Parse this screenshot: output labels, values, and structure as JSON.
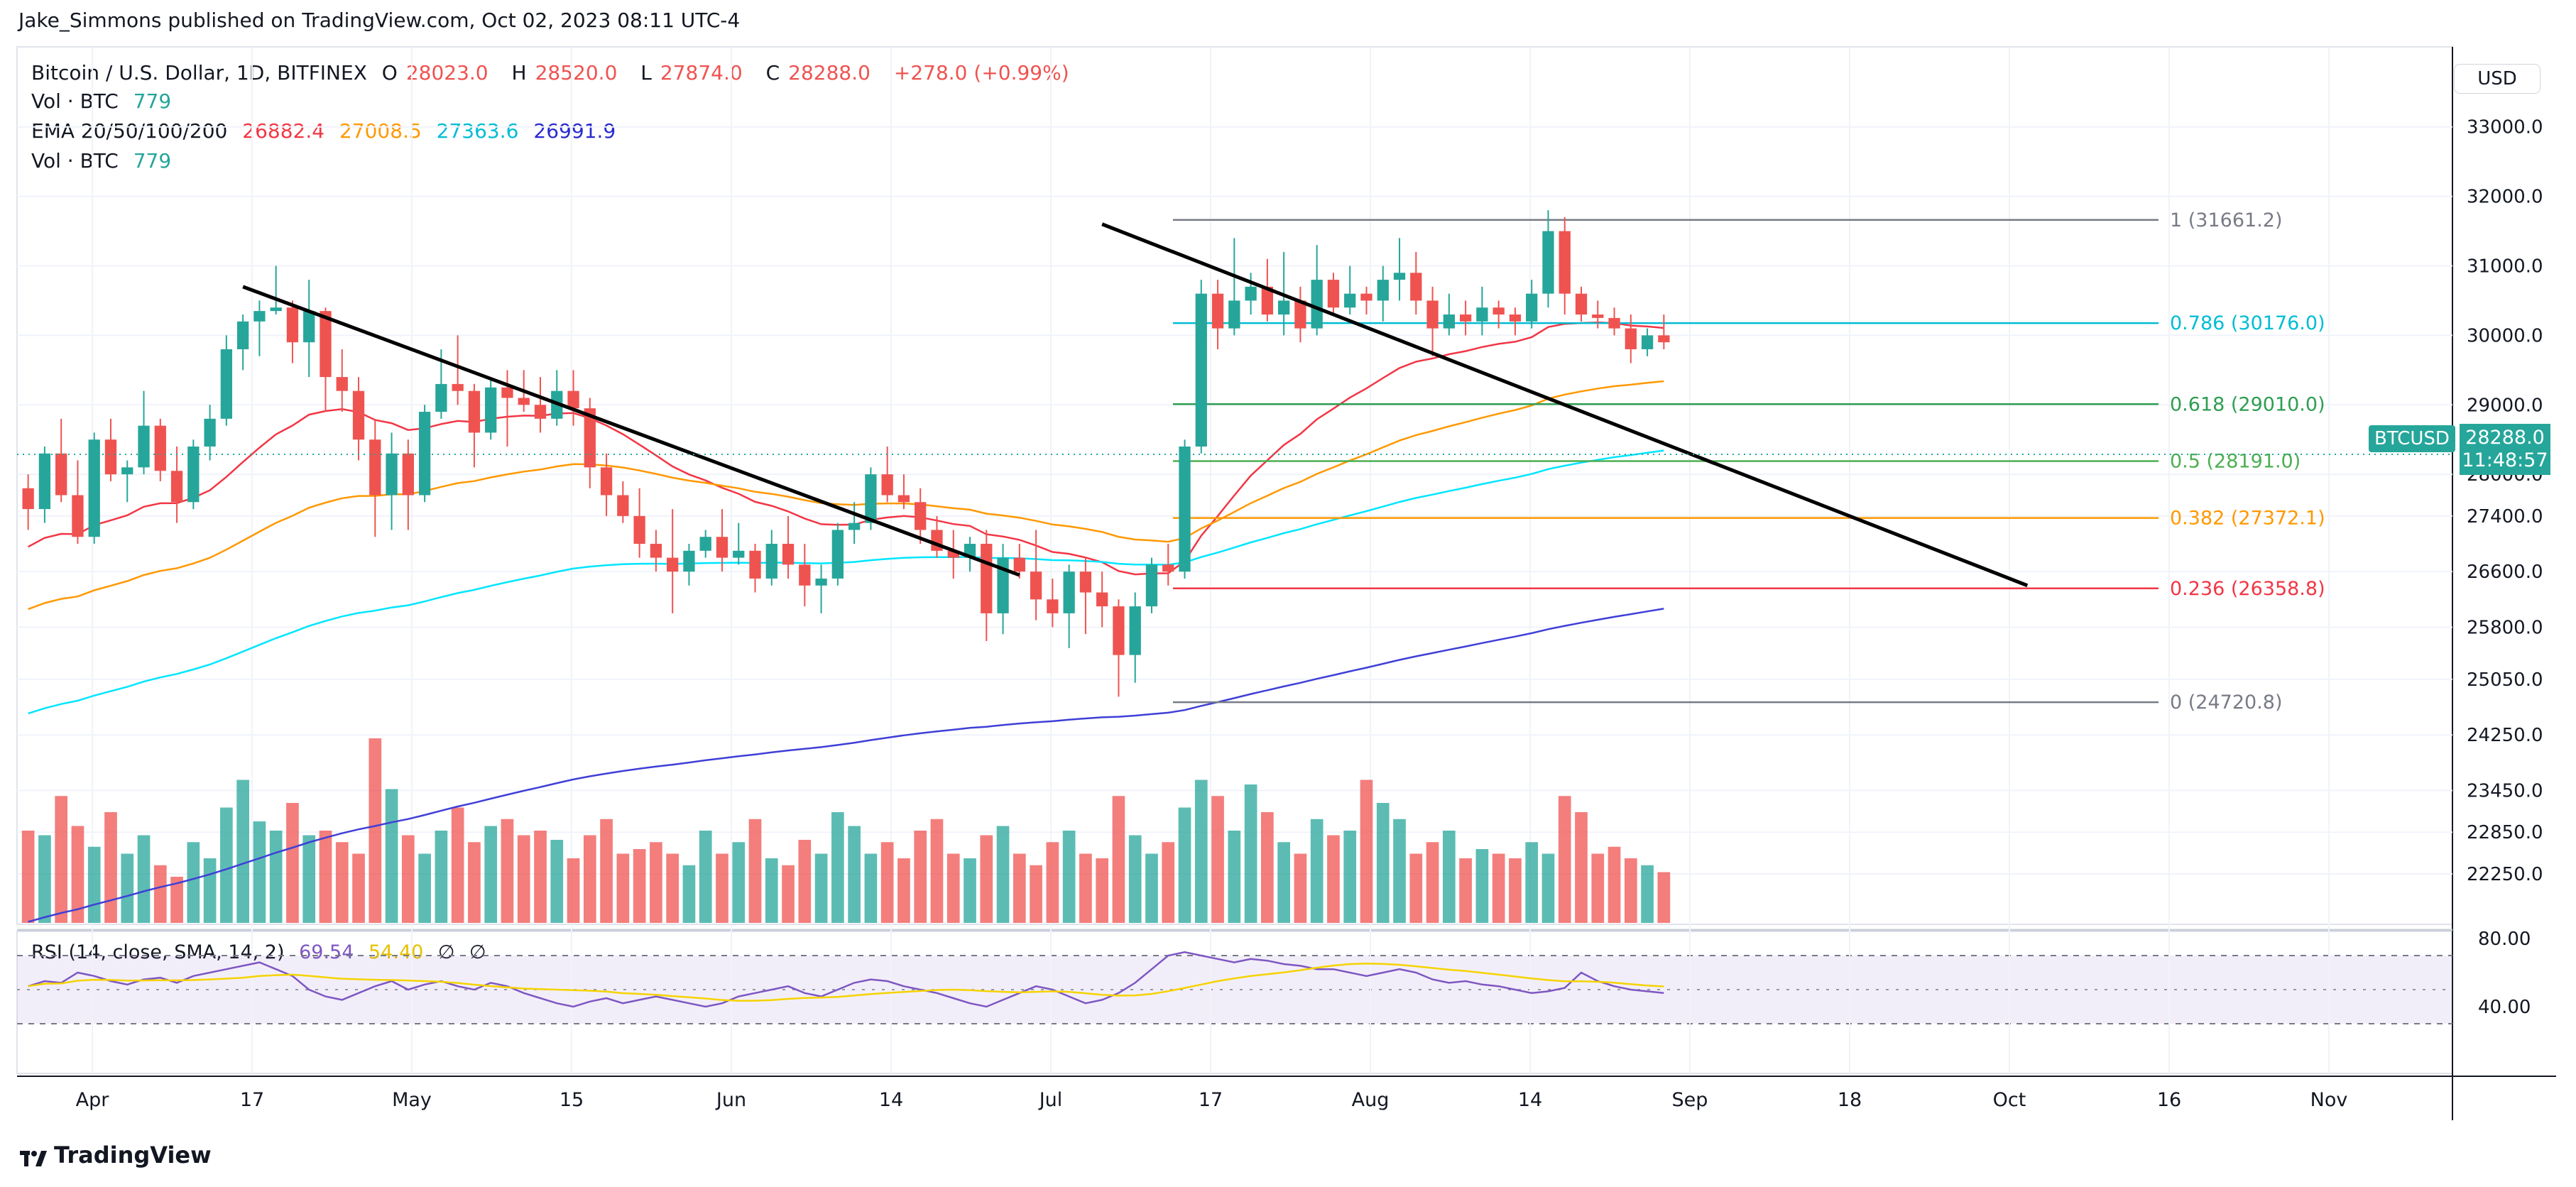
{
  "header": {
    "publisher_line": "Jake_Simmons published on TradingView.com, Oct 02, 2023 08:11 UTC-4"
  },
  "legend": {
    "symbol": "Bitcoin / U.S. Dollar, 1D, BITFINEX",
    "open_label": "O",
    "open": "28023.0",
    "high_label": "H",
    "high": "28520.0",
    "low_label": "L",
    "low": "27874.0",
    "close_label": "C",
    "close": "28288.0",
    "change": "+278.0 (+0.99%)",
    "vol_label": "Vol · BTC",
    "vol_value": "779",
    "ema_label": "EMA 20/50/100/200",
    "ema20": "26882.4",
    "ema50": "27008.5",
    "ema100": "27363.6",
    "ema200": "26991.9",
    "vol2_label": "Vol · BTC",
    "vol2_value": "779"
  },
  "rsi_legend": {
    "label": "RSI (14, close, SMA, 14, 2)",
    "rsi": "69.54",
    "sma": "54.40",
    "e1": "∅",
    "e2": "∅"
  },
  "currency_button": "USD",
  "price_scale": {
    "ticks": [
      "33000.0",
      "32000.0",
      "31000.0",
      "30000.0",
      "29000.0",
      "28000.0",
      "27400.0",
      "26600.0",
      "25800.0",
      "25050.0",
      "24250.0",
      "23450.0",
      "22850.0",
      "22250.0"
    ],
    "rsi_ticks": [
      "80.00",
      "40.00"
    ]
  },
  "last_price": {
    "symbol": "BTCUSD",
    "price": "28288.0",
    "countdown": "11:48:57"
  },
  "time_axis": [
    "Apr",
    "17",
    "May",
    "15",
    "Jun",
    "14",
    "Jul",
    "17",
    "Aug",
    "14",
    "Sep",
    "18",
    "Oct",
    "16",
    "Nov"
  ],
  "colors": {
    "up": "#26a69a",
    "down": "#ef5350",
    "ema20": "#f23645",
    "ema50": "#ff9800",
    "ema100": "#00e5ff",
    "ema200": "#3f3fd8",
    "rsi": "#7e57c2",
    "rsi_sma": "#f5d300"
  },
  "footer": {
    "brand": "TradingView"
  },
  "chart_data": {
    "type": "candlestick",
    "title": "Bitcoin / U.S. Dollar, 1D, BITFINEX",
    "ylim": [
      21800,
      33600
    ],
    "fib_levels": [
      {
        "label": "1 (31661.2)",
        "value": 31661.2,
        "color": "#787b86"
      },
      {
        "label": "0.786 (30176.0)",
        "value": 30176.0,
        "color": "#00bcd4"
      },
      {
        "label": "0.618 (29010.0)",
        "value": 29010.0,
        "color": "#2e9e52"
      },
      {
        "label": "0.5 (28191.0)",
        "value": 28191.0,
        "color": "#4caf50"
      },
      {
        "label": "0.382 (27372.1)",
        "value": 27372.1,
        "color": "#ff9800"
      },
      {
        "label": "0.236 (26358.8)",
        "value": 26358.8,
        "color": "#f23645"
      },
      {
        "label": "0 (24720.8)",
        "value": 24720.8,
        "color": "#787b86"
      }
    ],
    "trendlines": [
      {
        "from": [
          13,
          30700
        ],
        "to": [
          60,
          26550
        ]
      },
      {
        "from": [
          65,
          31600
        ],
        "to": [
          121,
          26400
        ]
      }
    ],
    "candles": [
      [
        27800,
        28000,
        27200,
        27500
      ],
      [
        27500,
        28400,
        27300,
        28300
      ],
      [
        28300,
        28800,
        27600,
        27700
      ],
      [
        27700,
        28200,
        27000,
        27100
      ],
      [
        27100,
        28600,
        27000,
        28500
      ],
      [
        28500,
        28800,
        27900,
        28000
      ],
      [
        28000,
        28200,
        27600,
        28100
      ],
      [
        28100,
        29200,
        28000,
        28700
      ],
      [
        28700,
        28800,
        27900,
        28050
      ],
      [
        28050,
        28400,
        27300,
        27600
      ],
      [
        27600,
        28500,
        27500,
        28400
      ],
      [
        28400,
        29000,
        28200,
        28800
      ],
      [
        28800,
        30000,
        28700,
        29800
      ],
      [
        29800,
        30300,
        29500,
        30200
      ],
      [
        30200,
        30500,
        29700,
        30350
      ],
      [
        30350,
        31000,
        30300,
        30400
      ],
      [
        30400,
        30500,
        29600,
        29900
      ],
      [
        29900,
        30800,
        29400,
        30350
      ],
      [
        30350,
        30400,
        28900,
        29400
      ],
      [
        29400,
        29800,
        28900,
        29200
      ],
      [
        29200,
        29400,
        28200,
        28500
      ],
      [
        28500,
        28800,
        27100,
        27700
      ],
      [
        27700,
        28600,
        27200,
        28300
      ],
      [
        28300,
        28500,
        27200,
        27700
      ],
      [
        27700,
        29000,
        27600,
        28900
      ],
      [
        28900,
        29800,
        28800,
        29300
      ],
      [
        29300,
        30000,
        29000,
        29200
      ],
      [
        29200,
        29300,
        28100,
        28600
      ],
      [
        28600,
        29400,
        28500,
        29250
      ],
      [
        29250,
        29500,
        28400,
        29100
      ],
      [
        29100,
        29500,
        28900,
        29000
      ],
      [
        29000,
        29400,
        28600,
        28800
      ],
      [
        28800,
        29500,
        28700,
        29200
      ],
      [
        29200,
        29500,
        28700,
        28950
      ],
      [
        28950,
        29100,
        27800,
        28100
      ],
      [
        28100,
        28300,
        27400,
        27700
      ],
      [
        27700,
        27900,
        27300,
        27400
      ],
      [
        27400,
        27800,
        26800,
        27000
      ],
      [
        27000,
        27200,
        26600,
        26800
      ],
      [
        26800,
        27500,
        26000,
        26600
      ],
      [
        26600,
        27000,
        26400,
        26900
      ],
      [
        26900,
        27200,
        26800,
        27100
      ],
      [
        27100,
        27500,
        26600,
        26800
      ],
      [
        26800,
        27300,
        26700,
        26900
      ],
      [
        26900,
        27000,
        26300,
        26500
      ],
      [
        26500,
        27200,
        26400,
        27000
      ],
      [
        27000,
        27400,
        26500,
        26700
      ],
      [
        26700,
        27000,
        26100,
        26400
      ],
      [
        26400,
        26700,
        26000,
        26500
      ],
      [
        26500,
        27300,
        26400,
        27200
      ],
      [
        27200,
        27600,
        27000,
        27300
      ],
      [
        27300,
        28100,
        27200,
        28000
      ],
      [
        28000,
        28400,
        27600,
        27700
      ],
      [
        27700,
        28000,
        27500,
        27600
      ],
      [
        27600,
        27800,
        27000,
        27200
      ],
      [
        27200,
        27400,
        26800,
        26900
      ],
      [
        26900,
        27200,
        26500,
        26800
      ],
      [
        26800,
        27100,
        26600,
        27000
      ],
      [
        27000,
        27200,
        25600,
        26000
      ],
      [
        26000,
        27000,
        25700,
        26800
      ],
      [
        26800,
        27000,
        26500,
        26600
      ],
      [
        26600,
        27200,
        25900,
        26200
      ],
      [
        26200,
        26500,
        25800,
        26000
      ],
      [
        26000,
        26700,
        25500,
        26600
      ],
      [
        26600,
        26800,
        25700,
        26300
      ],
      [
        26300,
        26600,
        25800,
        26100
      ],
      [
        26100,
        26200,
        24800,
        25400
      ],
      [
        25400,
        26300,
        25000,
        26100
      ],
      [
        26100,
        26800,
        26000,
        26700
      ],
      [
        26700,
        27000,
        26400,
        26600
      ],
      [
        26600,
        28500,
        26500,
        28400
      ],
      [
        28400,
        30800,
        28300,
        30600
      ],
      [
        30600,
        30800,
        29800,
        30100
      ],
      [
        30100,
        31400,
        30000,
        30500
      ],
      [
        30500,
        30900,
        30300,
        30700
      ],
      [
        30700,
        31100,
        30200,
        30300
      ],
      [
        30300,
        31200,
        30000,
        30500
      ],
      [
        30500,
        30700,
        29900,
        30100
      ],
      [
        30100,
        31300,
        30000,
        30800
      ],
      [
        30800,
        30900,
        30300,
        30400
      ],
      [
        30400,
        31000,
        30300,
        30600
      ],
      [
        30600,
        30700,
        30300,
        30500
      ],
      [
        30500,
        31000,
        30200,
        30800
      ],
      [
        30800,
        31400,
        30500,
        30900
      ],
      [
        30900,
        31200,
        30300,
        30500
      ],
      [
        30500,
        30700,
        29700,
        30100
      ],
      [
        30100,
        30600,
        30000,
        30300
      ],
      [
        30300,
        30500,
        30000,
        30200
      ],
      [
        30200,
        30700,
        30000,
        30400
      ],
      [
        30400,
        30500,
        30100,
        30300
      ],
      [
        30300,
        30400,
        30000,
        30200
      ],
      [
        30200,
        30800,
        30100,
        30600
      ],
      [
        30600,
        31800,
        30400,
        31500
      ],
      [
        31500,
        31700,
        30300,
        30600
      ],
      [
        30600,
        30700,
        30200,
        30300
      ],
      [
        30300,
        30500,
        30100,
        30250
      ],
      [
        30250,
        30400,
        30000,
        30100
      ],
      [
        30100,
        30300,
        29600,
        29800
      ],
      [
        29800,
        30100,
        29700,
        30000
      ],
      [
        30000,
        30300,
        29800,
        29900
      ]
    ],
    "volume_bars": [
      40,
      38,
      55,
      42,
      33,
      48,
      30,
      38,
      25,
      20,
      35,
      28,
      50,
      62,
      44,
      40,
      52,
      38,
      40,
      35,
      30,
      80,
      58,
      38,
      30,
      40,
      50,
      35,
      42,
      45,
      38,
      40,
      36,
      28,
      38,
      45,
      30,
      32,
      35,
      30,
      25,
      40,
      30,
      35,
      45,
      28,
      25,
      36,
      30,
      48,
      42,
      30,
      35,
      28,
      40,
      45,
      30,
      28,
      38,
      42,
      30,
      25,
      35,
      40,
      30,
      28,
      55,
      38,
      30,
      35,
      50,
      62,
      55,
      40,
      60,
      48,
      35,
      30,
      45,
      38,
      40,
      62,
      52,
      45,
      30,
      35,
      40,
      28,
      32,
      30,
      28,
      35,
      30,
      55,
      48,
      30,
      33,
      28,
      25,
      22
    ],
    "rsi_values": [
      52,
      55,
      54,
      60,
      58,
      55,
      53,
      56,
      57,
      54,
      58,
      60,
      62,
      64,
      66,
      62,
      58,
      50,
      46,
      44,
      48,
      52,
      55,
      50,
      53,
      55,
      52,
      50,
      54,
      52,
      48,
      45,
      42,
      40,
      43,
      45,
      42,
      44,
      46,
      44,
      42,
      40,
      42,
      46,
      48,
      50,
      52,
      48,
      46,
      50,
      54,
      56,
      55,
      52,
      50,
      48,
      45,
      42,
      40,
      44,
      48,
      52,
      50,
      46,
      42,
      44,
      48,
      54,
      62,
      70,
      72,
      70,
      68,
      66,
      68,
      67,
      65,
      64,
      62,
      62,
      60,
      58,
      60,
      62,
      60,
      56,
      54,
      55,
      53,
      52,
      50,
      48,
      49,
      51,
      60,
      55,
      52,
      50,
      49,
      48
    ]
  }
}
